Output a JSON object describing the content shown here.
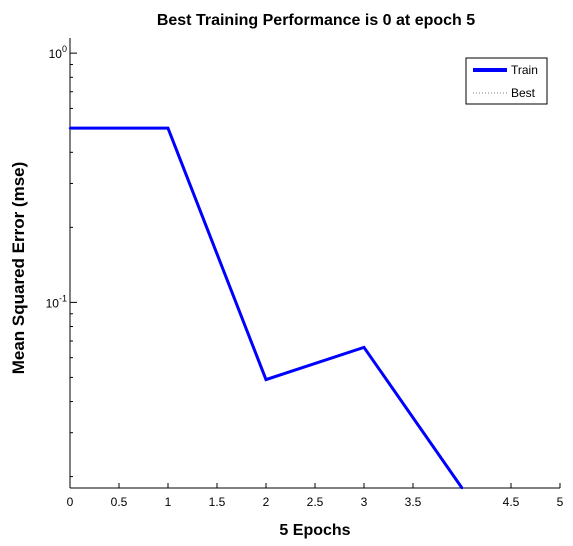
{
  "chart_data": {
    "type": "line",
    "title": "Best Training Performance is 0 at epoch 5",
    "xlabel": "5 Epochs",
    "ylabel": "Mean Squared Error  (mse)",
    "yscale": "log",
    "xlim": [
      0,
      5
    ],
    "ylim": [
      0.018,
      1.15
    ],
    "x_ticks": [
      0,
      0.5,
      1,
      1.5,
      2,
      2.5,
      3,
      3.5,
      4.5,
      5
    ],
    "x_tick_labels": [
      "0",
      "0.5",
      "1",
      "1.5",
      "2",
      "2.5",
      "3",
      "3.5",
      "4.5",
      "5"
    ],
    "y_ticks": [
      {
        "value": 1,
        "base": "10",
        "exp": "0"
      },
      {
        "value": 0.1,
        "base": "10",
        "exp": "-1"
      }
    ],
    "grid": false,
    "legend_position": "top-right",
    "series": [
      {
        "name": "Train",
        "color": "#0000ff",
        "style": "solid",
        "x": [
          0,
          1,
          2,
          3,
          4
        ],
        "y": [
          0.5,
          0.5,
          0.049,
          0.066,
          0.018
        ]
      },
      {
        "name": "Best",
        "color": "#7f7f7f",
        "style": "dotted",
        "x": [],
        "y": []
      }
    ]
  }
}
